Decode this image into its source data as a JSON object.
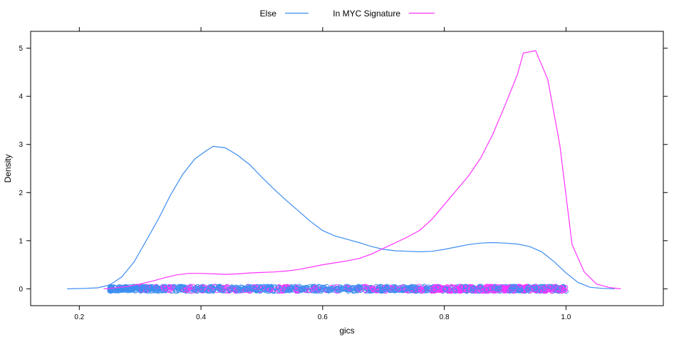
{
  "chart_data": {
    "type": "line",
    "title": "",
    "xlabel": "gics",
    "ylabel": "Density",
    "xlim": [
      0.12,
      1.16
    ],
    "ylim": [
      -0.35,
      5.35
    ],
    "x_ticks": [
      0.2,
      0.4,
      0.6,
      0.8,
      1.0
    ],
    "x_tick_labels": [
      "0.2",
      "0.4",
      "0.6",
      "0.8",
      "1.0"
    ],
    "y_ticks": [
      0,
      1,
      2,
      3,
      4,
      5
    ],
    "y_tick_labels": [
      "0",
      "1",
      "2",
      "3",
      "4",
      "5"
    ],
    "grid": false,
    "legend_position": "top",
    "series": [
      {
        "name": "Else",
        "color": "#3d8ef0",
        "x": [
          0.18,
          0.21,
          0.23,
          0.25,
          0.27,
          0.29,
          0.31,
          0.33,
          0.35,
          0.37,
          0.39,
          0.41,
          0.42,
          0.44,
          0.46,
          0.48,
          0.5,
          0.52,
          0.54,
          0.56,
          0.58,
          0.6,
          0.62,
          0.64,
          0.66,
          0.68,
          0.7,
          0.72,
          0.74,
          0.76,
          0.78,
          0.8,
          0.82,
          0.84,
          0.86,
          0.88,
          0.9,
          0.92,
          0.94,
          0.96,
          0.98,
          1.0,
          1.02,
          1.04,
          1.06,
          1.08
        ],
        "y": [
          0.0,
          0.01,
          0.02,
          0.08,
          0.25,
          0.56,
          1.0,
          1.45,
          1.95,
          2.38,
          2.7,
          2.88,
          2.96,
          2.93,
          2.78,
          2.58,
          2.32,
          2.07,
          1.84,
          1.62,
          1.4,
          1.21,
          1.1,
          1.03,
          0.96,
          0.88,
          0.82,
          0.79,
          0.78,
          0.77,
          0.78,
          0.82,
          0.87,
          0.92,
          0.95,
          0.96,
          0.95,
          0.93,
          0.88,
          0.77,
          0.57,
          0.33,
          0.13,
          0.03,
          0.01,
          0.0
        ]
      },
      {
        "name": "In MYC Signature",
        "color": "#ff33ff",
        "x": [
          0.24,
          0.26,
          0.28,
          0.3,
          0.32,
          0.34,
          0.36,
          0.38,
          0.4,
          0.42,
          0.44,
          0.46,
          0.48,
          0.5,
          0.52,
          0.54,
          0.56,
          0.58,
          0.6,
          0.62,
          0.64,
          0.66,
          0.68,
          0.7,
          0.72,
          0.74,
          0.76,
          0.78,
          0.8,
          0.82,
          0.84,
          0.86,
          0.88,
          0.9,
          0.92,
          0.93,
          0.95,
          0.97,
          0.99,
          1.01,
          1.03,
          1.05,
          1.07,
          1.09
        ],
        "y": [
          0.0,
          0.02,
          0.05,
          0.1,
          0.16,
          0.23,
          0.29,
          0.32,
          0.32,
          0.31,
          0.3,
          0.31,
          0.33,
          0.34,
          0.35,
          0.37,
          0.4,
          0.45,
          0.5,
          0.54,
          0.58,
          0.63,
          0.72,
          0.84,
          0.96,
          1.08,
          1.22,
          1.45,
          1.75,
          2.05,
          2.35,
          2.72,
          3.22,
          3.82,
          4.45,
          4.9,
          4.95,
          4.35,
          2.98,
          0.92,
          0.35,
          0.1,
          0.03,
          0.0
        ]
      }
    ],
    "rug_points": [
      {
        "series": "Else",
        "y": 0,
        "range": [
          0.25,
          1.0
        ],
        "density": "dense"
      },
      {
        "series": "In MYC Signature",
        "y": 0,
        "range": [
          0.3,
          1.0
        ],
        "density": "concentrated 0.78–0.98"
      }
    ]
  }
}
